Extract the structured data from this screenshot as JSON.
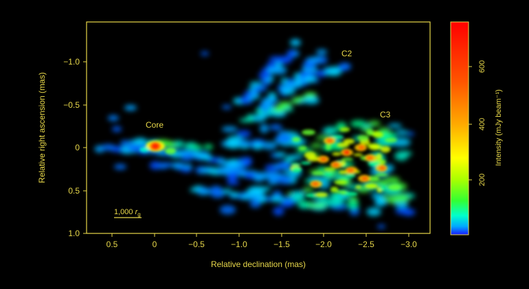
{
  "figure": {
    "x_label": "Relative declination (mas)",
    "y_label": "Relative right ascension (mas)",
    "colorbar_label": "Intensity (mJy beam⁻¹)",
    "x_ticks": [
      "0.5",
      "0",
      "−0.5",
      "−1.0",
      "−1.5",
      "−2.0",
      "−2.5",
      "−3.0"
    ],
    "y_ticks": [
      "−1.0",
      "−0.5",
      "0",
      "0.5",
      "1.0"
    ],
    "colorbar_ticks": [
      "200",
      "400",
      "600"
    ],
    "annotations": {
      "core": "Core",
      "c2": "C2",
      "c3": "C3"
    },
    "scale_bar": {
      "value": "1,000",
      "symbol": "r",
      "subscript": "g"
    },
    "colors": {
      "axis": "#e8d84a",
      "background": "#000000"
    }
  }
}
